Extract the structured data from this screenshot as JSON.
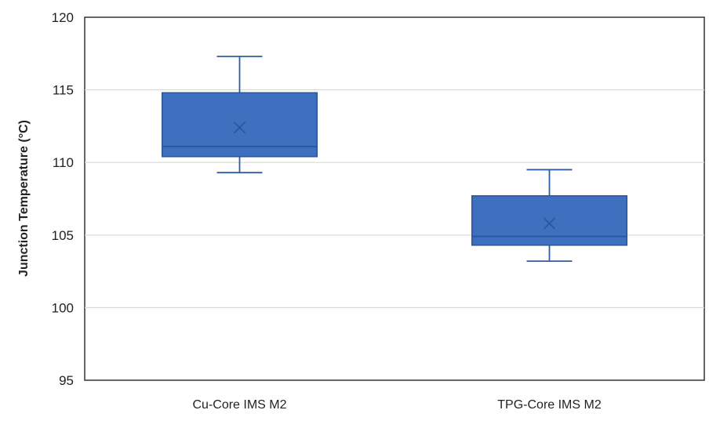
{
  "chart_data": {
    "type": "box",
    "title": "",
    "xlabel": "",
    "ylabel": "Junction Temperature (°C)",
    "ylim": [
      95,
      120
    ],
    "yticks": [
      95,
      100,
      105,
      110,
      115,
      120
    ],
    "grid": true,
    "legend": "none",
    "categories": [
      "Cu-Core IMS M2",
      "TPG-Core IMS M2"
    ],
    "boxes": [
      {
        "category": "Cu-Core IMS M2",
        "min": 109.3,
        "q1": 110.4,
        "median": 111.1,
        "q3": 114.8,
        "max": 117.3,
        "mean": 112.4
      },
      {
        "category": "TPG-Core IMS M2",
        "min": 103.2,
        "q1": 104.3,
        "median": 104.9,
        "q3": 107.7,
        "max": 109.5,
        "mean": 105.8
      }
    ],
    "colors": {
      "box_fill": "#3f6fbf",
      "box_stroke": "#2a5599",
      "whisker": "#2f5c9e",
      "grid": "#d9d9d9",
      "axis": "#333333"
    }
  }
}
